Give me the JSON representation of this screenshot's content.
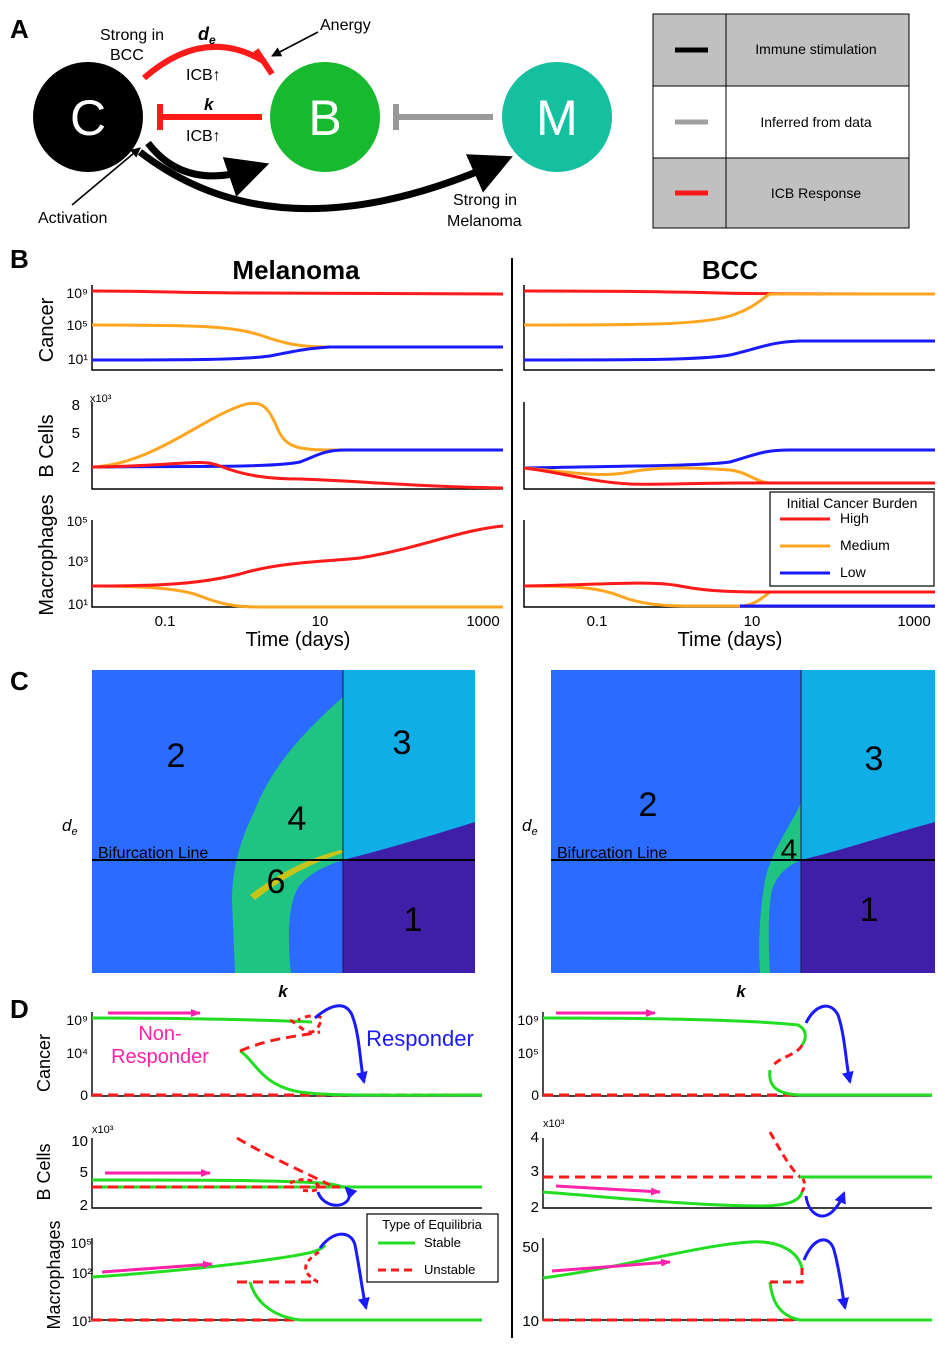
{
  "panel_letters": {
    "a": "A",
    "b": "B",
    "c": "C",
    "d": "D"
  },
  "diagram": {
    "node_cancer": "C",
    "node_bcell": "B",
    "node_macrophage": "M",
    "label_strong_bcc": "Strong in BCC",
    "label_de": "d",
    "label_de_sub": "e",
    "label_icb_top": "ICB↑",
    "label_anergy": "Anergy",
    "label_k": "k",
    "label_icb_mid": "ICB↑",
    "label_activation": "Activation",
    "label_strong_melanoma": "Strong in Melanoma",
    "colors": {
      "cancer": "#000000",
      "bcell": "#17b92f",
      "macrophage": "#15c0a0",
      "red": "#ff1a1a",
      "gray": "#999999"
    }
  },
  "legend_a": [
    {
      "label": "Immune stimulation",
      "color": "#000000",
      "bg": "#c0c0c0"
    },
    {
      "label": "Inferred from data",
      "color": "#a0a0a0",
      "bg": "#ffffff"
    },
    {
      "label": "ICB Response",
      "color": "#ff1a1a",
      "bg": "#c0c0c0"
    }
  ],
  "panel_b": {
    "titles": {
      "left": "Melanoma",
      "right": "BCC"
    },
    "ylabels": {
      "cancer": "Cancer",
      "bcells": "B Cells",
      "macrophages": "Macrophages"
    },
    "xlabel": "Time (days)",
    "xticks": [
      "0.1",
      "10",
      "1000"
    ],
    "cancer_ticks": {
      "left": [
        "10⁹",
        "10⁵",
        "10¹"
      ]
    },
    "bcell_ticks": {
      "left": [
        "8",
        "5",
        "2"
      ],
      "multiplier": "x10³"
    },
    "mac_ticks": {
      "left": [
        "10⁵",
        "10³",
        "10¹"
      ]
    },
    "legend": {
      "title": "Initial Cancer Burden",
      "items": [
        {
          "label": "High",
          "color": "#ff1a1a"
        },
        {
          "label": "Medium",
          "color": "#ffa51f"
        },
        {
          "label": "Low",
          "color": "#1a1aff"
        }
      ]
    }
  },
  "panel_c": {
    "xlabel": "k",
    "ylabel": "d",
    "ylabel_sub": "e",
    "bifurcation_label": "Bifurcation Line",
    "left_regions": [
      "2",
      "3",
      "4",
      "6",
      "1"
    ],
    "right_regions": [
      "2",
      "3",
      "4",
      "1"
    ],
    "colors": {
      "r1": "#3f1fa8",
      "r2": "#2c6bff",
      "r3": "#10aee6",
      "r4": "#1fc482"
    }
  },
  "panel_d": {
    "ylabels": {
      "cancer": "Cancer",
      "bcells": "B Cells",
      "macrophages": "Macrophages"
    },
    "non_responder": "Non-Responder",
    "responder": "Responder",
    "left_cancer_ticks": [
      "10⁹",
      "10⁴",
      "0"
    ],
    "right_cancer_ticks": [
      "10⁹",
      "10⁵",
      "0"
    ],
    "left_bcell_ticks": [
      "10",
      "5",
      "2"
    ],
    "right_bcell_ticks": [
      "4",
      "3",
      "2"
    ],
    "bcell_multiplier": "x10³",
    "left_mac_ticks": [
      "10⁵",
      "10²",
      "10¹"
    ],
    "right_mac_ticks": [
      "50",
      "10"
    ],
    "legend": {
      "title": "Type of Equilibria",
      "items": [
        {
          "label": "Stable",
          "color": "#22dd22"
        },
        {
          "label": "Unstable",
          "color": "#ff1a1a"
        }
      ]
    },
    "colors": {
      "stable": "#22dd22",
      "unstable": "#ff1a1a",
      "pink": "#ff22aa",
      "blue": "#1a1aff"
    }
  }
}
